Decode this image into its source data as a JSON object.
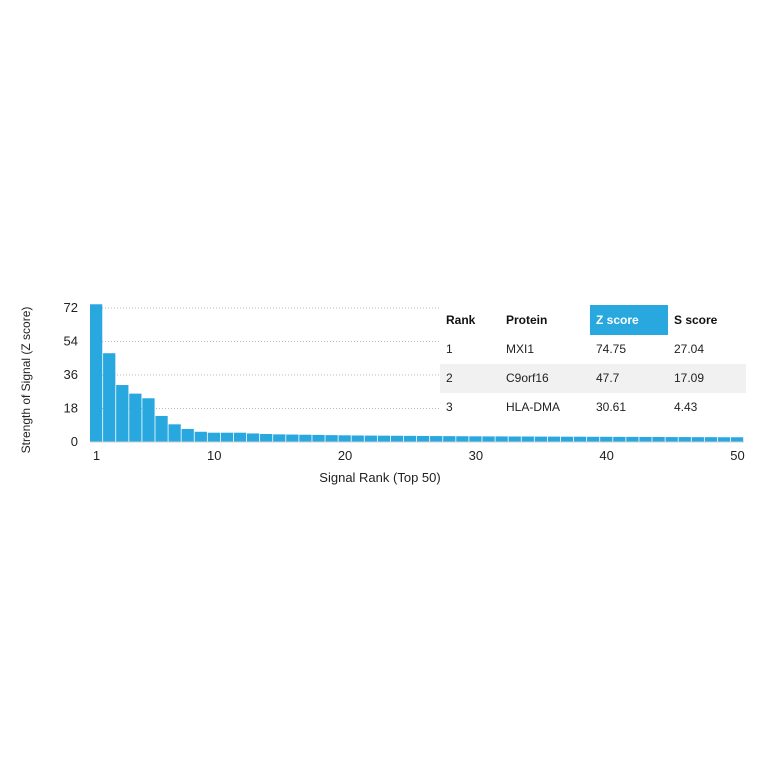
{
  "chart_data": {
    "type": "bar",
    "title": "",
    "xlabel": "Signal Rank (Top 50)",
    "ylabel": "Strength of Signal (Z score)",
    "ylim": [
      0,
      72
    ],
    "xlim": [
      1,
      50
    ],
    "yticks": [
      "72",
      "54",
      "36",
      "18",
      "0"
    ],
    "xticks": [
      "1",
      "10",
      "20",
      "30",
      "40",
      "50"
    ],
    "grid": "dotted horizontal lines at 18, 36, 54, 72",
    "bar_color": "#29a8e0",
    "x": [
      1,
      2,
      3,
      4,
      5,
      6,
      7,
      8,
      9,
      10,
      11,
      12,
      13,
      14,
      15,
      16,
      17,
      18,
      19,
      20,
      21,
      22,
      23,
      24,
      25,
      26,
      27,
      28,
      29,
      30,
      31,
      32,
      33,
      34,
      35,
      36,
      37,
      38,
      39,
      40,
      41,
      42,
      43,
      44,
      45,
      46,
      47,
      48,
      49,
      50
    ],
    "values": [
      74.75,
      47.7,
      30.61,
      26.0,
      23.5,
      14.0,
      9.5,
      7.0,
      5.5,
      5.0,
      5.0,
      5.0,
      4.6,
      4.3,
      4.1,
      4.0,
      3.9,
      3.8,
      3.7,
      3.6,
      3.5,
      3.45,
      3.4,
      3.35,
      3.3,
      3.25,
      3.2,
      3.15,
      3.1,
      3.05,
      3.0,
      3.0,
      2.95,
      2.95,
      2.9,
      2.9,
      2.85,
      2.85,
      2.8,
      2.8,
      2.75,
      2.75,
      2.7,
      2.7,
      2.65,
      2.65,
      2.6,
      2.6,
      2.55,
      2.55
    ]
  },
  "table": {
    "headers": [
      "Rank",
      "Protein",
      "Z score",
      "S score"
    ],
    "highlight_header": "Z score",
    "highlight_color": "#29a8e0",
    "rows": [
      [
        "1",
        "MXI1",
        "74.75",
        "27.04"
      ],
      [
        "2",
        "C9orf16",
        "47.7",
        "17.09"
      ],
      [
        "3",
        "HLA-DMA",
        "30.61",
        "4.43"
      ]
    ]
  }
}
